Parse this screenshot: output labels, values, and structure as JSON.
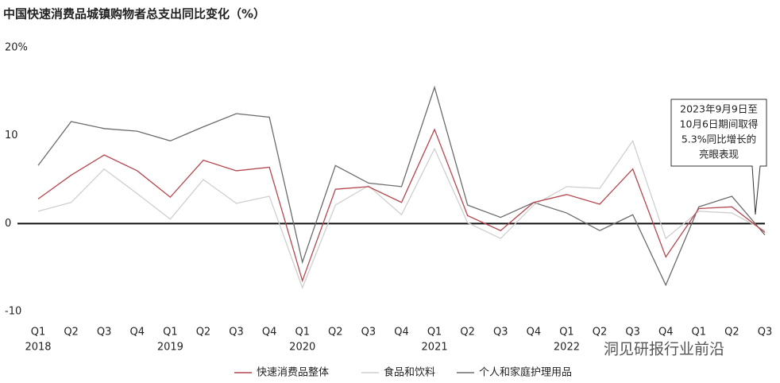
{
  "chart_data": {
    "type": "line",
    "title": "中国快速消费品城镇购物者总支出同比变化（%）",
    "categories": [
      "Q1",
      "Q2",
      "Q3",
      "Q4",
      "Q1",
      "Q2",
      "Q3",
      "Q4",
      "Q1",
      "Q2",
      "Q3",
      "Q4",
      "Q1",
      "Q2",
      "Q3",
      "Q4",
      "Q1",
      "Q2",
      "Q3",
      "Q4",
      "Q1",
      "Q2",
      "Q3"
    ],
    "year_labels": [
      "2018",
      null,
      null,
      null,
      "2019",
      null,
      null,
      null,
      "2020",
      null,
      null,
      null,
      "2021",
      null,
      null,
      null,
      "2022",
      null,
      null,
      null,
      null,
      null,
      null
    ],
    "series": [
      {
        "name": "快速消费品整体",
        "color": "#b5474f",
        "values": [
          2.8,
          5.5,
          7.8,
          6,
          3,
          7.2,
          6,
          6.4,
          -6.5,
          3.9,
          4.2,
          2.4,
          10.7,
          0.9,
          -0.8,
          2.4,
          3.3,
          2.2,
          6.2,
          -3.8,
          1.7,
          1.9,
          -1.0
        ]
      },
      {
        "name": "食品和饮料",
        "color": "#cfcfcf",
        "values": [
          1.4,
          2.4,
          6.2,
          3.4,
          0.5,
          5,
          2.3,
          3.1,
          -7.3,
          2.1,
          4.3,
          1,
          8.5,
          0.1,
          -1.7,
          2.1,
          4.2,
          4,
          9.4,
          -1.7,
          1.4,
          1.2,
          -0.8
        ]
      },
      {
        "name": "个人和家庭护理用品",
        "color": "#6b6b6b",
        "values": [
          6.6,
          11.6,
          10.8,
          10.5,
          9.4,
          11,
          12.5,
          12.1,
          -4.4,
          6.6,
          4.6,
          4.2,
          15.5,
          2.1,
          0.7,
          2.4,
          1.2,
          -0.8,
          1,
          -7,
          1.9,
          3.1,
          -1.3
        ]
      }
    ],
    "ylim": [
      -10,
      20
    ],
    "yticks": [
      -10,
      0,
      10,
      {
        "value": 20,
        "label": "20%"
      }
    ],
    "zero_line": true,
    "annotation": {
      "lines": [
        "2023年9月9日至",
        "10月6日期间取得",
        "5.3%同比增长的",
        "亮眼表现"
      ]
    },
    "watermark": "洞见研报行业前沿"
  }
}
